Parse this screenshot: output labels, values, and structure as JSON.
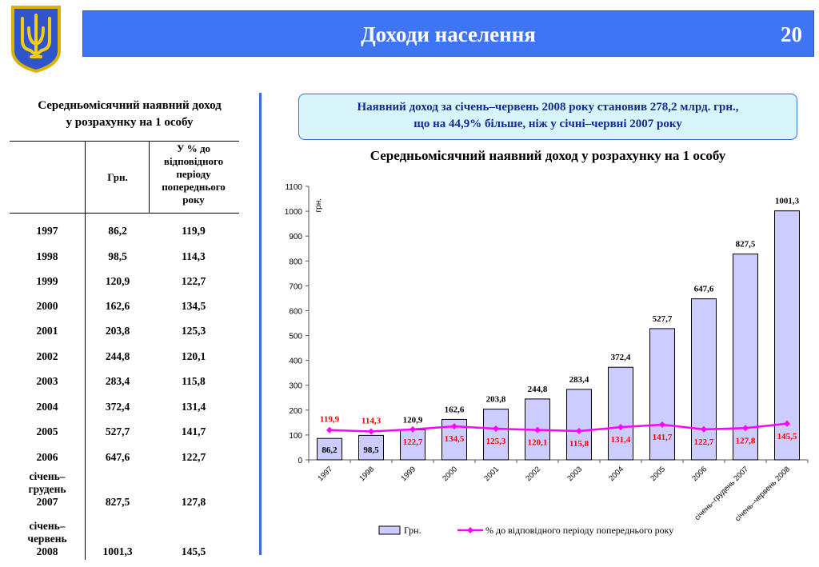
{
  "header": {
    "title": "Доходи населення",
    "page_number": "20",
    "emblem_icon": "trident-emblem-icon"
  },
  "colors": {
    "header_bg": "#3f74f5",
    "bar_fill": "#ccccff",
    "line_color": "#ff00ff",
    "pct_label_color": "#ff0000",
    "info_text": "#132c8f",
    "info_bg": "#d7f5fa"
  },
  "table": {
    "title_line1": "Середньомісячний наявний доход",
    "title_line2": "у розрахунку на 1 особу",
    "headers": {
      "grn": "Грн.",
      "pct_lines": [
        "У % до",
        "відповідного",
        "періоду",
        "попереднього",
        "року"
      ]
    },
    "rows": [
      {
        "year_lines": [
          "1997"
        ],
        "grn": "86,2",
        "pct": "119,9"
      },
      {
        "year_lines": [
          "1998"
        ],
        "grn": "98,5",
        "pct": "114,3"
      },
      {
        "year_lines": [
          "1999"
        ],
        "grn": "120,9",
        "pct": "122,7"
      },
      {
        "year_lines": [
          "2000"
        ],
        "grn": "162,6",
        "pct": "134,5"
      },
      {
        "year_lines": [
          "2001"
        ],
        "grn": "203,8",
        "pct": "125,3"
      },
      {
        "year_lines": [
          "2002"
        ],
        "grn": "244,8",
        "pct": "120,1"
      },
      {
        "year_lines": [
          "2003"
        ],
        "grn": "283,4",
        "pct": "115,8"
      },
      {
        "year_lines": [
          "2004"
        ],
        "grn": "372,4",
        "pct": "131,4"
      },
      {
        "year_lines": [
          "2005"
        ],
        "grn": "527,7",
        "pct": "141,7"
      },
      {
        "year_lines": [
          "2006"
        ],
        "grn": "647,6",
        "pct": "122,7"
      },
      {
        "year_lines": [
          "січень–",
          "грудень",
          "2007"
        ],
        "grn": "827,5",
        "pct": "127,8"
      },
      {
        "year_lines": [
          "січень–",
          "червень",
          "2008"
        ],
        "grn": "1001,3",
        "pct": "145,5"
      }
    ]
  },
  "info_box": {
    "line1": "Наявний доход за січень–червень 2008 року становив 278,2 млрд. грн.,",
    "line2": "що на 44,9% більше, ніж у січні–червні 2007 року"
  },
  "chart_data": {
    "type": "bar",
    "title": "Середньомісячний наявний доход у розрахунку на 1 особу",
    "ylabel": "грн.",
    "ylim": [
      0,
      1100
    ],
    "yticks": [
      0,
      100,
      200,
      300,
      400,
      500,
      600,
      700,
      800,
      900,
      1000,
      1100
    ],
    "categories": [
      "1997",
      "1998",
      "1999",
      "2000",
      "2001",
      "2002",
      "2003",
      "2004",
      "2005",
      "2006",
      "січень–грудень 2007",
      "січень–червень 2008"
    ],
    "series": [
      {
        "name": "Грн.",
        "kind": "bar",
        "values": [
          86.2,
          98.5,
          120.9,
          162.6,
          203.8,
          244.8,
          283.4,
          372.4,
          527.7,
          647.6,
          827.5,
          1001.3
        ],
        "labels": [
          "86,2",
          "98,5",
          "120,9",
          "162,6",
          "203,8",
          "244,8",
          "283,4",
          "372,4",
          "527,7",
          "647,6",
          "827,5",
          "1001,3"
        ]
      },
      {
        "name": "% до відповідного періоду попереднього року",
        "kind": "line",
        "values": [
          119.9,
          114.3,
          122.7,
          134.5,
          125.3,
          120.1,
          115.8,
          131.4,
          141.7,
          122.7,
          127.8,
          145.5
        ],
        "labels": [
          "119,9",
          "114,3",
          "122,7",
          "134,5",
          "125,3",
          "120,1",
          "115,8",
          "131,4",
          "141,7",
          "122,7",
          "127,8",
          "145,5"
        ]
      }
    ],
    "legend_position": "bottom"
  }
}
